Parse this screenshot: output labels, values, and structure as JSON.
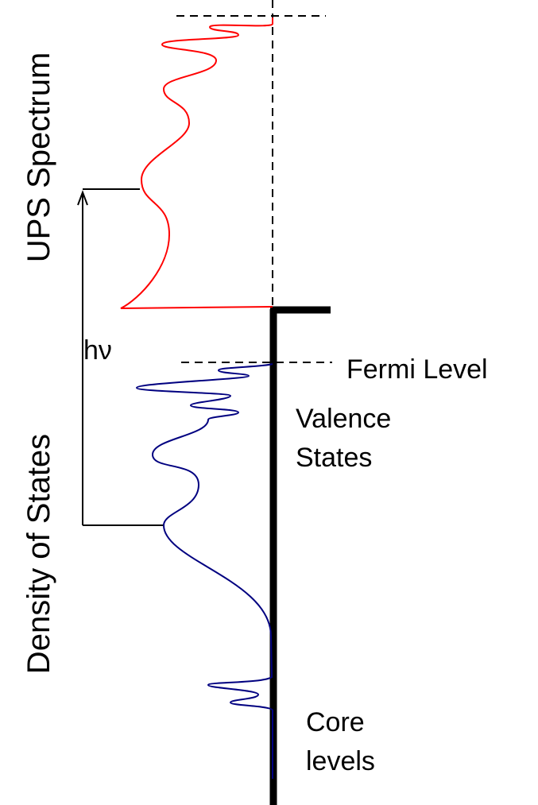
{
  "labels": {
    "ups_spectrum": "UPS Spectrum",
    "density_of_states": "Density of States",
    "photon_energy": "hν",
    "fermi_level": "Fermi Level",
    "valence_states_line1": "Valence",
    "valence_states_line2": "States",
    "core_levels_line1": "Core",
    "core_levels_line2": "levels"
  },
  "colors": {
    "ups_curve": "#ff0000",
    "dos_curve": "#000080",
    "lines": "#000000"
  }
}
